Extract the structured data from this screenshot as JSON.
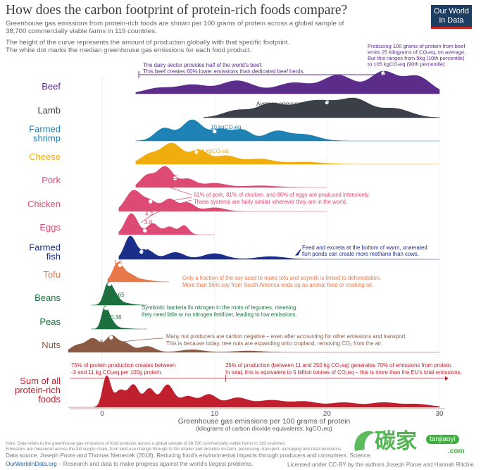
{
  "header": {
    "title": "How does the carbon footprint of protein-rich foods compare?",
    "subtitle_lines": [
      "Greenhouse gas emissions from protein-rich foods are shown per 100 grams of protein across a global sample of",
      "38,700 commercially viable farms in 119 countries.",
      "The height of the curve represents the amount of production globally with that specific footprint.",
      "The white dot marks the median greenhouse gas emissions for each food product."
    ]
  },
  "logo": {
    "line1": "Our World",
    "line2": "in Data"
  },
  "chart_data": {
    "type": "ridgeline",
    "x_range": [
      -3,
      30
    ],
    "x_ticks": [
      0,
      10,
      20,
      30
    ],
    "xlabel": "Greenhouse gas emissions per 100 grams of protein",
    "xlabel_sub": "(kilograms of carbon dioxide equivalents; kgCO₂eq)",
    "series": [
      {
        "name": [
          "Beef"
        ],
        "color": "#5c2c8b",
        "median": 25,
        "median_label": "25",
        "peaks": [
          [
            5,
            0.25,
            1.2
          ],
          [
            8,
            0.4,
            1.3
          ],
          [
            12,
            0.6,
            1.5
          ],
          [
            17,
            0.5,
            1.5
          ],
          [
            21,
            0.85,
            1.4
          ],
          [
            25,
            1.0,
            1.2
          ],
          [
            28,
            0.8,
            1.2
          ]
        ],
        "range": [
          3,
          30
        ]
      },
      {
        "name": [
          "Lamb"
        ],
        "color": "#3b4048",
        "median": 20,
        "median_label": "",
        "peaks": [
          [
            12,
            0.4,
            1.2
          ],
          [
            15,
            0.75,
            1.2
          ],
          [
            18,
            0.7,
            1.3
          ],
          [
            20,
            0.6,
            1.2
          ],
          [
            22.5,
            1.0,
            1.3
          ],
          [
            26,
            0.5,
            1.4
          ]
        ],
        "range": [
          9,
          30
        ]
      },
      {
        "name": [
          "Farmed",
          "shrimp"
        ],
        "color": "#1f82b4",
        "median": 10,
        "median_label": "10 kgCO₂eq",
        "peaks": [
          [
            5.5,
            0.6,
            0.8
          ],
          [
            8,
            1.0,
            0.9
          ],
          [
            10.5,
            0.55,
            0.9
          ],
          [
            12.5,
            0.5,
            0.8
          ],
          [
            15.5,
            0.45,
            1.0
          ],
          [
            18,
            0.3,
            1.2
          ]
        ],
        "range": [
          3,
          30
        ]
      },
      {
        "name": [
          "Cheese"
        ],
        "color": "#f0ae0e",
        "median": 8.4,
        "median_label": "8,4 kgCO₂eq",
        "peaks": [
          [
            4.2,
            0.45,
            0.8
          ],
          [
            6.2,
            1.0,
            0.9
          ],
          [
            8.6,
            0.65,
            0.8
          ],
          [
            11,
            0.4,
            1.0
          ],
          [
            14,
            0.25,
            1.2
          ],
          [
            18,
            0.1,
            1.5
          ]
        ],
        "range": [
          3,
          30
        ]
      },
      {
        "name": [
          "Pork"
        ],
        "color": "#dd4b74",
        "median": 6.5,
        "median_label": "6.5",
        "peaks": [
          [
            4,
            0.55,
            0.6
          ],
          [
            5.6,
            1.0,
            0.7
          ],
          [
            7.6,
            0.4,
            0.7
          ],
          [
            10,
            0.2,
            1.0
          ],
          [
            14,
            0.08,
            1.5
          ]
        ],
        "range": [
          3,
          20
        ]
      },
      {
        "name": [
          "Chicken"
        ],
        "color": "#dd4b74",
        "median": 4.3,
        "median_label": "4.3",
        "peaks": [
          [
            2.8,
            0.85,
            0.7
          ],
          [
            4.3,
            0.4,
            0.6
          ],
          [
            6,
            0.5,
            0.6
          ],
          [
            7.6,
            0.35,
            0.6
          ],
          [
            10,
            0.15,
            0.9
          ]
        ],
        "range": [
          1.5,
          20
        ]
      },
      {
        "name": [
          "Eggs"
        ],
        "color": "#dd4b74",
        "median": 3.8,
        "median_label": "3.8",
        "peaks": [
          [
            2.6,
            0.95,
            0.55
          ],
          [
            4.5,
            0.5,
            0.5
          ],
          [
            6,
            0.35,
            0.5
          ],
          [
            7.3,
            0.4,
            0.4
          ]
        ],
        "range": [
          1.5,
          10
        ]
      },
      {
        "name": [
          "Farmed",
          "fish"
        ],
        "color": "#1b2f8a",
        "median": 3.5,
        "median_label": "3.5",
        "peaks": [
          [
            2.5,
            1.0,
            0.5
          ],
          [
            4,
            0.4,
            0.6
          ],
          [
            6.5,
            0.3,
            0.8
          ],
          [
            10,
            0.25,
            1.0
          ],
          [
            15,
            0.12,
            1.2
          ]
        ],
        "range": [
          1.5,
          30
        ]
      },
      {
        "name": [
          "Tofu"
        ],
        "color": "#e8784a",
        "median": 1.6,
        "median_label": "1.6",
        "peaks": [
          [
            1.4,
            1.0,
            0.45
          ],
          [
            2.4,
            0.35,
            0.5
          ],
          [
            3.5,
            0.12,
            0.8
          ]
        ],
        "range": [
          0.5,
          6
        ]
      },
      {
        "name": [
          "Beans"
        ],
        "color": "#1c7040",
        "median": 0.65,
        "median_label": "0.65",
        "peaks": [
          [
            0.5,
            1.0,
            0.35
          ],
          [
            1.1,
            0.5,
            0.4
          ],
          [
            2,
            0.1,
            0.6
          ]
        ],
        "range": [
          -1,
          4
        ]
      },
      {
        "name": [
          "Peas"
        ],
        "color": "#1c7040",
        "median": 0.36,
        "median_label": "0.36",
        "peaks": [
          [
            0.25,
            1.0,
            0.3
          ],
          [
            0.8,
            0.35,
            0.35
          ],
          [
            1.6,
            0.05,
            0.6
          ]
        ],
        "range": [
          -1,
          4
        ]
      },
      {
        "name": [
          "Nuts"
        ],
        "color": "#8b5a45",
        "median": 0.8,
        "median_label": "0.8",
        "peaks": [
          [
            -2.2,
            0.4,
            0.6
          ],
          [
            -0.8,
            0.8,
            0.6
          ],
          [
            0.8,
            0.9,
            0.5
          ],
          [
            2,
            0.55,
            0.6
          ],
          [
            4,
            0.35,
            0.7
          ],
          [
            8,
            0.15,
            1.0
          ],
          [
            13,
            0.08,
            1.2
          ]
        ],
        "range": [
          -3,
          30
        ]
      },
      {
        "name": [
          "Sum of all",
          "protein-rich",
          "foods"
        ],
        "color": "#c0202e",
        "median": null,
        "median_label": "",
        "peaks": [
          [
            0.4,
            1.0,
            0.35
          ],
          [
            1.6,
            0.55,
            0.5
          ],
          [
            2.8,
            0.7,
            0.45
          ],
          [
            4.2,
            0.6,
            0.5
          ],
          [
            5.8,
            0.72,
            0.55
          ],
          [
            7.6,
            0.35,
            0.7
          ],
          [
            9.5,
            0.4,
            0.7
          ],
          [
            12,
            0.3,
            1.0
          ],
          [
            15,
            0.22,
            1.2
          ],
          [
            18,
            0.18,
            1.2
          ],
          [
            21.5,
            0.15,
            1.2
          ],
          [
            25,
            0.15,
            1.2
          ],
          [
            28,
            0.1,
            1.2
          ]
        ],
        "range": [
          -3,
          30
        ]
      }
    ],
    "annotations": {
      "dairy": [
        "The dairy sector provides half of the world's beef.",
        "This beef creates 60% lower emissions than dedicated beef herds."
      ],
      "beef_right": [
        "Producing 100 grams of protein from beef",
        "emits 25 kilograms of CO₂eq, on average.",
        "But this ranges from 9kg (10th percentile)",
        "to 105 kgCO₂eq (90th percentile) ."
      ],
      "lamb": "Average emissions = 20 kgCO₂eq",
      "intensive": [
        "61% of pork, 81% of chicken, and 86% of eggs are produced intensively.",
        "These systems are fairly similar wherever they are in the world."
      ],
      "fish": [
        "Feed and excreta at the bottom of warm, unaerated",
        "fish ponds can create more methane than cows."
      ],
      "tofu": [
        "Only a fraction of the soy used to make tofu and soymilk is linked to deforestation.",
        "More than 96% soy from South America ends up as animal feed or cooking oil."
      ],
      "legumes": [
        "Symbiotic bacteria fix nitrogen in the roots of legumes, meaning",
        "they need little or no nitrogen fertilizer, leading to low emissions."
      ],
      "nuts": [
        "Many nut producers are carbon negative – even after accounting for other emissions and transport.",
        "This is because today, tree nuts are expanding onto cropland, removing CO₂ from the air."
      ],
      "sum_left": [
        "75% of protein production creates between",
        "-3 and 11 kg CO₂eq per 100g protein."
      ],
      "sum_right": [
        "25% of production (between 11 and 250 kg CO₂eq) generates 70% of emissions from protein.",
        "In total, this is equivalent to 5 billion tonnes of CO₂eq – this is more than the EU's total emissions."
      ]
    }
  },
  "footer": {
    "note1": "Note: Data refers to the greenhouse gas emissions of food products across a global sample of 38,700 commercially viable farms in 119 countries.",
    "note2": "Emissions are measured across the full supply chain, from land use change through to the retailer and includes on-farm, processing, transport, packaging and retail emissions.",
    "source": "Data source: Joseph Poore and Thomas Nemecek (2018). Reducing food's environmental impacts through producers and consumers. Science.",
    "site": "OurWorldinData.org",
    "tagline": " – Research and data to make progress against the world's largest problems.",
    "license": "Licensed under CC-BY by the authors Joseph Poore and Hannah Ritchie."
  },
  "watermark": {
    "site": "tanjiaoyi",
    "com": ".com"
  }
}
